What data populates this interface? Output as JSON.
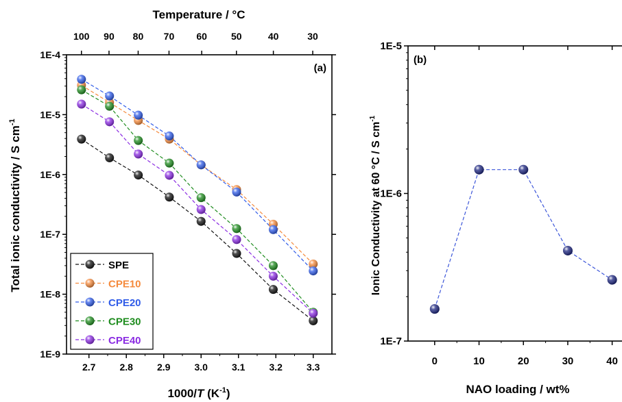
{
  "chart_data": [
    {
      "type": "scatter",
      "panel_label": "(a)",
      "title": "",
      "xlabel_pre": "1000/",
      "xlabel_italic": "T",
      "xlabel_unit": " (K",
      "xlabel_sup": "-1",
      "xlabel_post": ")",
      "ylabel_main": "Total ionic conductivity / S cm",
      "ylabel_sup": "-1",
      "top_axis_label": "Temperature / °C",
      "xlim": [
        2.64,
        3.35
      ],
      "ylim": [
        1e-09,
        0.0001
      ],
      "yscale": "log",
      "x_ticks": [
        2.7,
        2.8,
        2.9,
        3.0,
        3.1,
        3.2,
        3.3
      ],
      "x_tick_labels": [
        "2.7",
        "2.8",
        "2.9",
        "3.0",
        "3.1",
        "3.2",
        "3.3"
      ],
      "y_ticks": [
        1e-09,
        1e-08,
        1e-07,
        1e-06,
        1e-05,
        0.0001
      ],
      "y_tick_labels": [
        "1E-9",
        "1E-8",
        "1E-7",
        "1E-6",
        "1E-5",
        "1E-4"
      ],
      "top_ticks_celsius": [
        100,
        90,
        80,
        70,
        60,
        50,
        40,
        30
      ],
      "top_tick_labels": [
        "100",
        "90",
        "80",
        "70",
        "60",
        "50",
        "40",
        "30"
      ],
      "x": [
        2.68,
        2.755,
        2.832,
        2.915,
        3.0,
        3.095,
        3.193,
        3.3
      ],
      "series": [
        {
          "name": "SPE",
          "color": "#111111",
          "values": [
            3.9e-06,
            1.9e-06,
            9.8e-07,
            4.2e-07,
            1.65e-07,
            4.8e-08,
            1.2e-08,
            3.6e-09
          ]
        },
        {
          "name": "CPE10",
          "color": "#f58a3c",
          "values": [
            3.1e-05,
            1.6e-05,
            8e-06,
            3.9e-06,
            1.45e-06,
            5.6e-07,
            1.48e-07,
            3.2e-08
          ]
        },
        {
          "name": "CPE20",
          "color": "#2f5be8",
          "values": [
            3.9e-05,
            2.05e-05,
            9.8e-06,
            4.4e-06,
            1.45e-06,
            5.1e-07,
            1.2e-07,
            2.45e-08
          ]
        },
        {
          "name": "CPE30",
          "color": "#1e8c1e",
          "values": [
            2.6e-05,
            1.38e-05,
            3.7e-06,
            1.55e-06,
            4.1e-07,
            1.25e-07,
            3e-08,
            5e-09
          ]
        },
        {
          "name": "CPE40",
          "color": "#8a2be2",
          "values": [
            1.5e-05,
            7.6e-06,
            2.2e-06,
            9.7e-07,
            2.6e-07,
            8.2e-08,
            2e-08,
            4.8e-09
          ]
        }
      ],
      "legend_placement": "bottom-left",
      "grid": false
    },
    {
      "type": "scatter",
      "panel_label": "(b)",
      "title": "",
      "xlabel": "NAO loading / wt%",
      "ylabel": "Ionic Conductivity at 60 °C / S cm",
      "ylabel_sup": "-1",
      "xlim": [
        -6,
        45
      ],
      "ylim": [
        1e-07,
        1e-05
      ],
      "yscale": "log",
      "x_ticks": [
        0,
        10,
        20,
        30,
        40
      ],
      "x_tick_labels": [
        "0",
        "10",
        "20",
        "30",
        "40"
      ],
      "y_ticks": [
        1e-07,
        1e-06,
        1e-05
      ],
      "y_tick_labels": [
        "1E-7",
        "1E-6",
        "1E-5"
      ],
      "x": [
        0,
        10,
        20,
        30,
        40
      ],
      "series": [
        {
          "color": "#1a237e",
          "values": [
            1.65e-07,
            1.45e-06,
            1.45e-06,
            4.1e-07,
            2.6e-07
          ]
        }
      ],
      "grid": false
    }
  ]
}
